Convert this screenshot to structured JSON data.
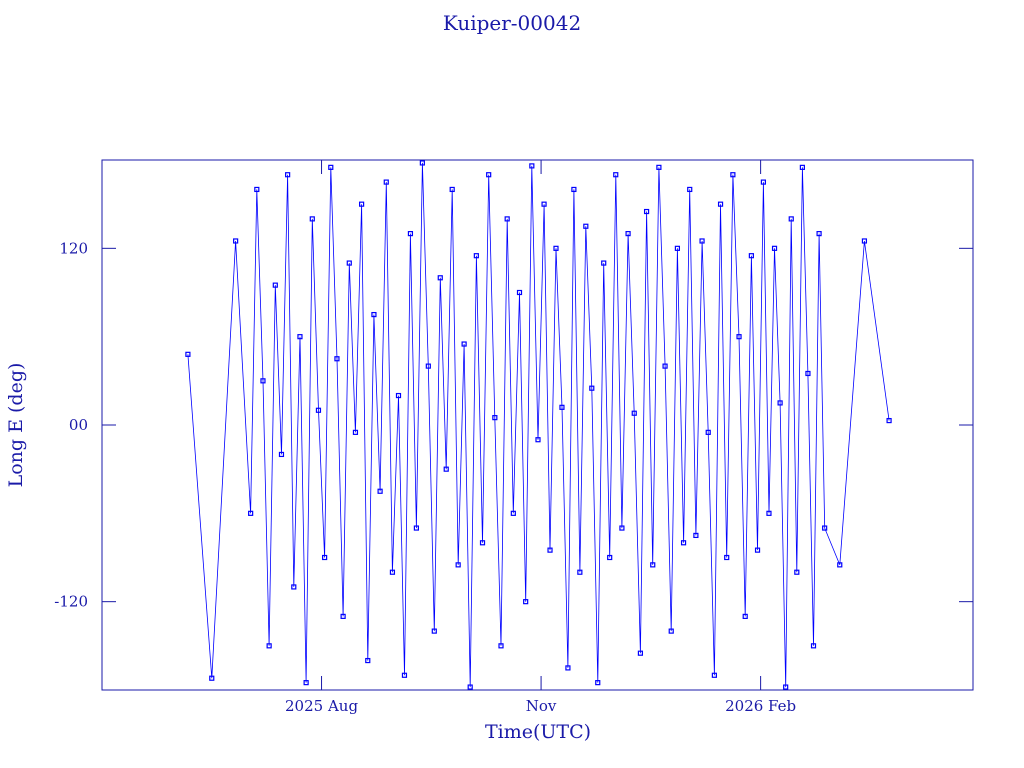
{
  "chart_data": {
    "type": "line",
    "title": "Kuiper-00042",
    "x_label": "Time(UTC)",
    "y_label": "Long E (deg)",
    "x": [
      "2025-06",
      "2025-06",
      "2025-06",
      "2025-07",
      "2025-07",
      "2025-07",
      "2025-07",
      "2025-07",
      "2025-07",
      "2025-07",
      "2025-07",
      "2025-07",
      "2025-07",
      "2025-07",
      "2025-07",
      "2025-08",
      "2025-08",
      "2025-08",
      "2025-08",
      "2025-08",
      "2025-08",
      "2025-08",
      "2025-08",
      "2025-08",
      "2025-08",
      "2025-08",
      "2025-08",
      "2025-09",
      "2025-09",
      "2025-09",
      "2025-09",
      "2025-09",
      "2025-09",
      "2025-09",
      "2025-09",
      "2025-09",
      "2025-09",
      "2025-09",
      "2025-09",
      "2025-10",
      "2025-10",
      "2025-10",
      "2025-10",
      "2025-10",
      "2025-10",
      "2025-10",
      "2025-10",
      "2025-10",
      "2025-10",
      "2025-10",
      "2025-10",
      "2025-11",
      "2025-11",
      "2025-11",
      "2025-11",
      "2025-11",
      "2025-11",
      "2025-11",
      "2025-11",
      "2025-11",
      "2025-11",
      "2025-11",
      "2025-11",
      "2025-12",
      "2025-12",
      "2025-12",
      "2025-12",
      "2025-12",
      "2025-12",
      "2025-12",
      "2025-12",
      "2025-12",
      "2025-12",
      "2025-12",
      "2025-12",
      "2026-01",
      "2026-01",
      "2026-01",
      "2026-01",
      "2026-01",
      "2026-01",
      "2026-01",
      "2026-01",
      "2026-01",
      "2026-01",
      "2026-01",
      "2026-01",
      "2026-02",
      "2026-02",
      "2026-02",
      "2026-02",
      "2026-02",
      "2026-02",
      "2026-02",
      "2026-02",
      "2026-02",
      "2026-02",
      "2026-02",
      "2026-02",
      "2026-03",
      "2026-03",
      "2026-03"
    ],
    "series": [
      {
        "color": "#0000ff",
        "values": [
          48,
          -172,
          125,
          -60,
          160,
          30,
          -150,
          95,
          -20,
          170,
          -110,
          60,
          -175,
          140,
          10,
          -90,
          175,
          45,
          -130,
          110,
          -5,
          150,
          -160,
          75,
          -45,
          165,
          -100,
          20,
          -170,
          130,
          -70,
          178,
          40,
          -140,
          100,
          -30,
          160,
          -95,
          55,
          -178,
          115,
          -80,
          170,
          5,
          -150,
          140,
          -60,
          90,
          -120,
          176,
          -10,
          150,
          -85,
          120,
          12,
          -165,
          160,
          -100,
          135,
          25,
          -175,
          110,
          -90,
          170,
          -70,
          130,
          8,
          -155,
          145,
          -95,
          175,
          40,
          -140,
          120,
          -80,
          160,
          -75,
          125,
          -5,
          -170,
          150,
          -90,
          170,
          60,
          -130,
          115,
          -85,
          165,
          -60,
          120,
          15,
          -178,
          140,
          -100,
          175,
          35,
          -150,
          130,
          -70,
          -95,
          125,
          3
        ]
      }
    ],
    "xlim": [
      "2025-05",
      "2026-05"
    ],
    "xticks": [
      {
        "value": "2025-08",
        "label": "2025 Aug"
      },
      {
        "value": "2025-11",
        "label": "Nov"
      },
      {
        "value": "2026-02",
        "label": "2026 Feb"
      }
    ],
    "ylim": [
      -180,
      180
    ],
    "yticks": [
      -120,
      {
        "value": 0,
        "label": "00"
      },
      120
    ]
  }
}
